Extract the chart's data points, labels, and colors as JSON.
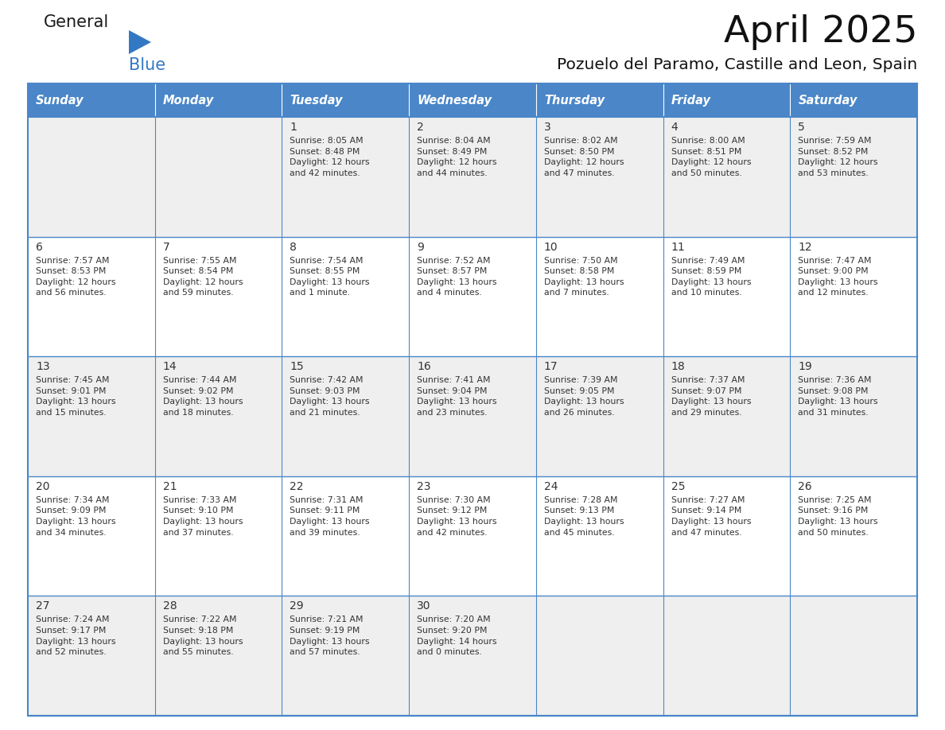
{
  "title": "April 2025",
  "subtitle": "Pozuelo del Paramo, Castille and Leon, Spain",
  "header_bg": "#4A86C8",
  "header_text": "#FFFFFF",
  "row_bg_odd": "#EFEFEF",
  "row_bg_even": "#FFFFFF",
  "border_color": "#4A86C8",
  "text_color": "#333333",
  "days_of_week": [
    "Sunday",
    "Monday",
    "Tuesday",
    "Wednesday",
    "Thursday",
    "Friday",
    "Saturday"
  ],
  "calendar_data": [
    [
      {
        "day": "",
        "info": ""
      },
      {
        "day": "",
        "info": ""
      },
      {
        "day": "1",
        "info": "Sunrise: 8:05 AM\nSunset: 8:48 PM\nDaylight: 12 hours\nand 42 minutes."
      },
      {
        "day": "2",
        "info": "Sunrise: 8:04 AM\nSunset: 8:49 PM\nDaylight: 12 hours\nand 44 minutes."
      },
      {
        "day": "3",
        "info": "Sunrise: 8:02 AM\nSunset: 8:50 PM\nDaylight: 12 hours\nand 47 minutes."
      },
      {
        "day": "4",
        "info": "Sunrise: 8:00 AM\nSunset: 8:51 PM\nDaylight: 12 hours\nand 50 minutes."
      },
      {
        "day": "5",
        "info": "Sunrise: 7:59 AM\nSunset: 8:52 PM\nDaylight: 12 hours\nand 53 minutes."
      }
    ],
    [
      {
        "day": "6",
        "info": "Sunrise: 7:57 AM\nSunset: 8:53 PM\nDaylight: 12 hours\nand 56 minutes."
      },
      {
        "day": "7",
        "info": "Sunrise: 7:55 AM\nSunset: 8:54 PM\nDaylight: 12 hours\nand 59 minutes."
      },
      {
        "day": "8",
        "info": "Sunrise: 7:54 AM\nSunset: 8:55 PM\nDaylight: 13 hours\nand 1 minute."
      },
      {
        "day": "9",
        "info": "Sunrise: 7:52 AM\nSunset: 8:57 PM\nDaylight: 13 hours\nand 4 minutes."
      },
      {
        "day": "10",
        "info": "Sunrise: 7:50 AM\nSunset: 8:58 PM\nDaylight: 13 hours\nand 7 minutes."
      },
      {
        "day": "11",
        "info": "Sunrise: 7:49 AM\nSunset: 8:59 PM\nDaylight: 13 hours\nand 10 minutes."
      },
      {
        "day": "12",
        "info": "Sunrise: 7:47 AM\nSunset: 9:00 PM\nDaylight: 13 hours\nand 12 minutes."
      }
    ],
    [
      {
        "day": "13",
        "info": "Sunrise: 7:45 AM\nSunset: 9:01 PM\nDaylight: 13 hours\nand 15 minutes."
      },
      {
        "day": "14",
        "info": "Sunrise: 7:44 AM\nSunset: 9:02 PM\nDaylight: 13 hours\nand 18 minutes."
      },
      {
        "day": "15",
        "info": "Sunrise: 7:42 AM\nSunset: 9:03 PM\nDaylight: 13 hours\nand 21 minutes."
      },
      {
        "day": "16",
        "info": "Sunrise: 7:41 AM\nSunset: 9:04 PM\nDaylight: 13 hours\nand 23 minutes."
      },
      {
        "day": "17",
        "info": "Sunrise: 7:39 AM\nSunset: 9:05 PM\nDaylight: 13 hours\nand 26 minutes."
      },
      {
        "day": "18",
        "info": "Sunrise: 7:37 AM\nSunset: 9:07 PM\nDaylight: 13 hours\nand 29 minutes."
      },
      {
        "day": "19",
        "info": "Sunrise: 7:36 AM\nSunset: 9:08 PM\nDaylight: 13 hours\nand 31 minutes."
      }
    ],
    [
      {
        "day": "20",
        "info": "Sunrise: 7:34 AM\nSunset: 9:09 PM\nDaylight: 13 hours\nand 34 minutes."
      },
      {
        "day": "21",
        "info": "Sunrise: 7:33 AM\nSunset: 9:10 PM\nDaylight: 13 hours\nand 37 minutes."
      },
      {
        "day": "22",
        "info": "Sunrise: 7:31 AM\nSunset: 9:11 PM\nDaylight: 13 hours\nand 39 minutes."
      },
      {
        "day": "23",
        "info": "Sunrise: 7:30 AM\nSunset: 9:12 PM\nDaylight: 13 hours\nand 42 minutes."
      },
      {
        "day": "24",
        "info": "Sunrise: 7:28 AM\nSunset: 9:13 PM\nDaylight: 13 hours\nand 45 minutes."
      },
      {
        "day": "25",
        "info": "Sunrise: 7:27 AM\nSunset: 9:14 PM\nDaylight: 13 hours\nand 47 minutes."
      },
      {
        "day": "26",
        "info": "Sunrise: 7:25 AM\nSunset: 9:16 PM\nDaylight: 13 hours\nand 50 minutes."
      }
    ],
    [
      {
        "day": "27",
        "info": "Sunrise: 7:24 AM\nSunset: 9:17 PM\nDaylight: 13 hours\nand 52 minutes."
      },
      {
        "day": "28",
        "info": "Sunrise: 7:22 AM\nSunset: 9:18 PM\nDaylight: 13 hours\nand 55 minutes."
      },
      {
        "day": "29",
        "info": "Sunrise: 7:21 AM\nSunset: 9:19 PM\nDaylight: 13 hours\nand 57 minutes."
      },
      {
        "day": "30",
        "info": "Sunrise: 7:20 AM\nSunset: 9:20 PM\nDaylight: 14 hours\nand 0 minutes."
      },
      {
        "day": "",
        "info": ""
      },
      {
        "day": "",
        "info": ""
      },
      {
        "day": "",
        "info": ""
      }
    ]
  ],
  "logo_general_color": "#1a1a1a",
  "logo_blue_color": "#3378C3",
  "logo_triangle_color": "#3378C3",
  "fig_width": 11.88,
  "fig_height": 9.18,
  "dpi": 100
}
